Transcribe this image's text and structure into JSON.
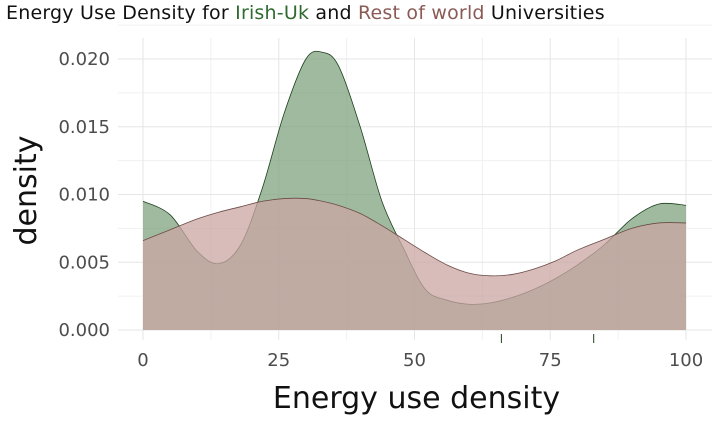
{
  "title": {
    "prefix": "Energy Use Density for ",
    "group_a": "Irish-Uk",
    "middle": " and ",
    "group_b": "Rest of world",
    "suffix": " Universities"
  },
  "colors": {
    "irish_fill": "#7fa37f",
    "irish_line": "#1e3f1e",
    "rest_fill": "#c9a6a3",
    "rest_line": "#6b4a46",
    "grid": "#e6e6e6",
    "title_irish": "#2f6b2f",
    "title_rest": "#8a5a55"
  },
  "chart_data": {
    "type": "area",
    "title": "Energy Use Density for Irish-Uk and Rest of world Universities",
    "xlabel": "Energy use density",
    "ylabel": "density",
    "xlim": [
      0,
      100
    ],
    "ylim": [
      0,
      0.02
    ],
    "x_ticks": [
      0,
      25,
      50,
      75,
      100
    ],
    "x_tick_labels": [
      "0",
      "25",
      "50",
      "75",
      "100"
    ],
    "y_ticks": [
      0,
      0.005,
      0.01,
      0.015,
      0.02
    ],
    "y_tick_labels": [
      "0.000",
      "0.005",
      "0.010",
      "0.015",
      "0.020"
    ],
    "grid": true,
    "rug_x": [
      66,
      83
    ],
    "x": [
      0,
      5,
      10,
      14,
      18,
      22,
      26,
      30,
      33,
      36,
      40,
      44,
      48,
      52,
      56,
      60,
      64,
      68,
      72,
      76,
      80,
      85,
      90,
      95,
      100
    ],
    "series": [
      {
        "values": [
          0.0095,
          0.0085,
          0.0058,
          0.0049,
          0.0063,
          0.0105,
          0.016,
          0.02,
          0.0205,
          0.0195,
          0.015,
          0.0095,
          0.006,
          0.003,
          0.0022,
          0.0019,
          0.002,
          0.0024,
          0.003,
          0.0038,
          0.0048,
          0.0063,
          0.0082,
          0.0093,
          0.0092
        ]
      },
      {
        "values": [
          0.0066,
          0.0074,
          0.0082,
          0.0087,
          0.0091,
          0.0095,
          0.0097,
          0.0097,
          0.0095,
          0.0092,
          0.0086,
          0.0077,
          0.0067,
          0.0057,
          0.0048,
          0.0042,
          0.004,
          0.0041,
          0.0045,
          0.0051,
          0.0059,
          0.0067,
          0.0075,
          0.0079,
          0.0079
        ]
      }
    ]
  }
}
